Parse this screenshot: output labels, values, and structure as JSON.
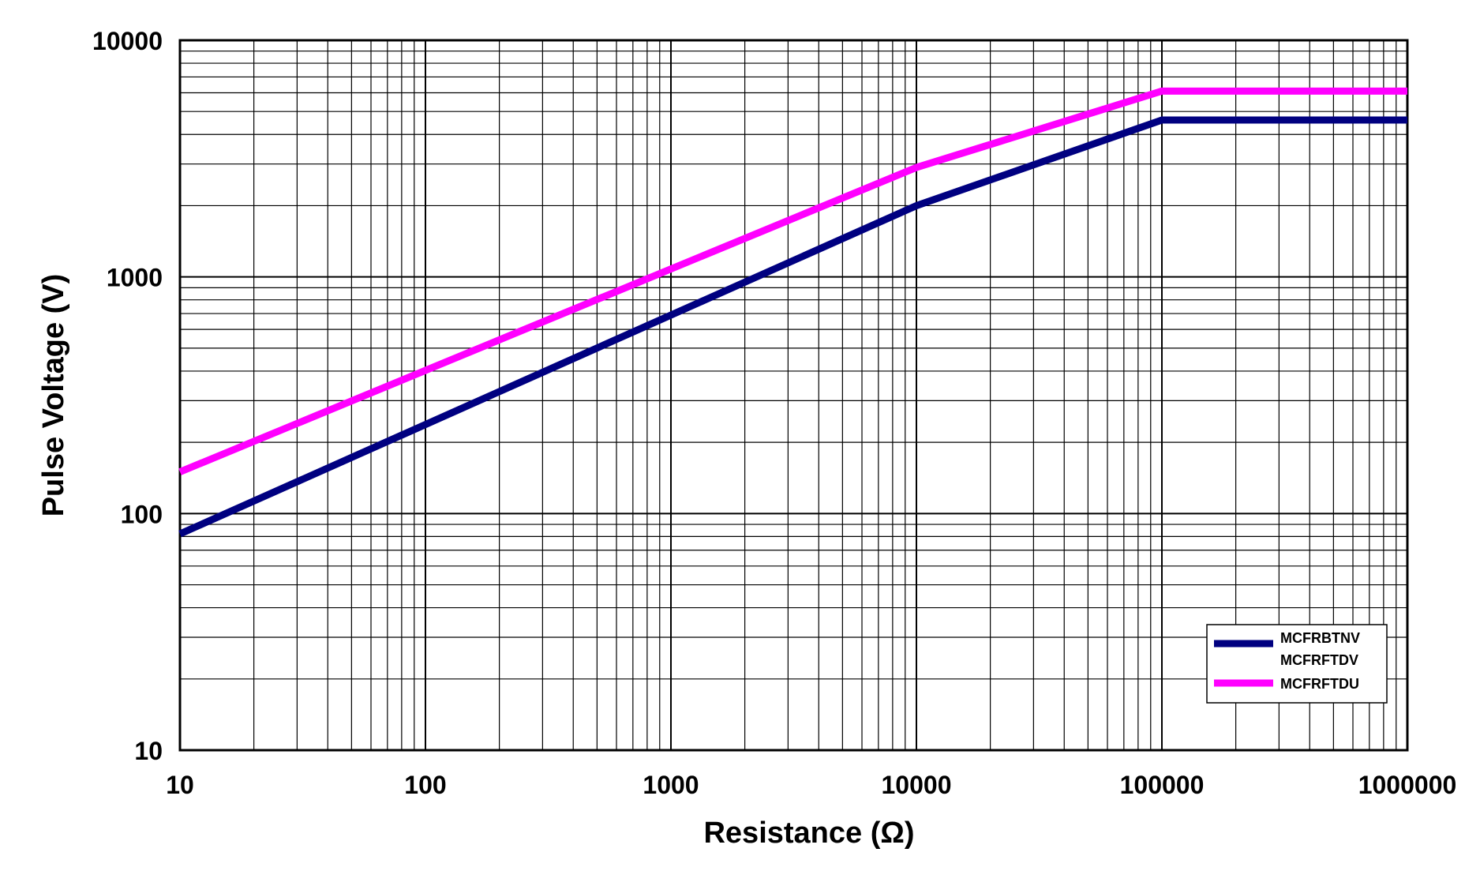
{
  "chart_data": {
    "type": "line",
    "title": "",
    "xlabel": "Resistance (Ω)",
    "ylabel": "Pulse Voltage (V)",
    "xscale": "log",
    "yscale": "log",
    "xlim": [
      10,
      1000000
    ],
    "ylim": [
      10,
      10000
    ],
    "grid": true,
    "x_ticks": [
      "10",
      "100",
      "1000",
      "10000",
      "100000",
      "1000000"
    ],
    "y_ticks": [
      "10",
      "100",
      "1000",
      "10000"
    ],
    "legend_position": "bottom-right",
    "series": [
      {
        "name": "MCFRBTNV",
        "name_line2": "MCFRFTDV",
        "color": "#000080",
        "x": [
          10,
          10000,
          100000,
          1000000
        ],
        "y": [
          82,
          2000,
          4600,
          4600
        ]
      },
      {
        "name": "MCFRFTDU",
        "color": "#FF00FF",
        "x": [
          10,
          10000,
          100000,
          1000000
        ],
        "y": [
          150,
          2900,
          6100,
          6100
        ]
      }
    ]
  }
}
